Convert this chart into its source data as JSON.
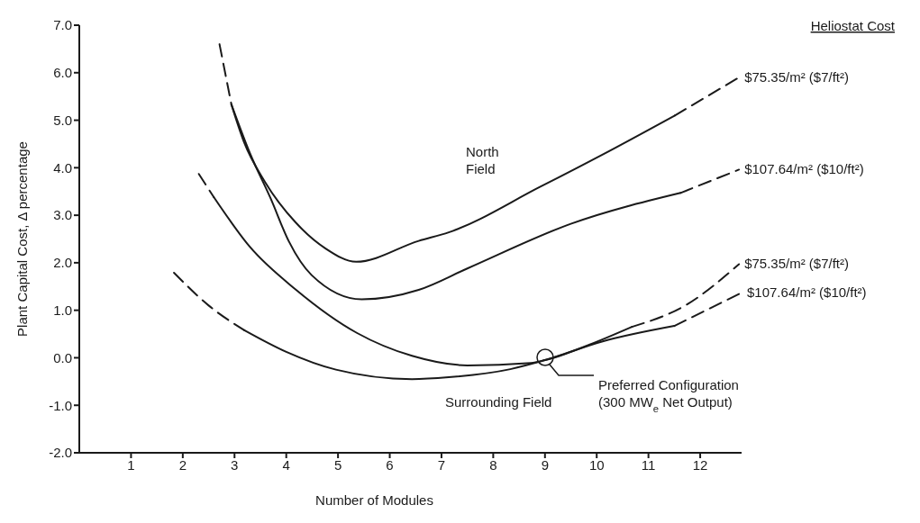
{
  "chart_data": {
    "type": "line",
    "xlabel": "Number of Modules",
    "ylabel": "Plant Capital Cost, Δ percentage",
    "legend_title": "Heliostat Cost",
    "xlim": [
      0,
      12.8
    ],
    "xticks": [
      1,
      2,
      3,
      4,
      5,
      6,
      7,
      8,
      9,
      10,
      11,
      12
    ],
    "ylim": [
      -2,
      7
    ],
    "yticks": [
      {
        "value": -2,
        "label": "-2.0"
      },
      {
        "value": -1,
        "label": "-1.0"
      },
      {
        "value": 0,
        "label": "0.0"
      },
      {
        "value": 1,
        "label": "1.0"
      },
      {
        "value": 2,
        "label": "2.0"
      },
      {
        "value": 3,
        "label": "3.0"
      },
      {
        "value": 4,
        "label": "4.0"
      },
      {
        "value": 5,
        "label": "5.0"
      },
      {
        "value": 6,
        "label": "6.0"
      },
      {
        "value": 7,
        "label": "7.0"
      }
    ],
    "grid": false,
    "legend": false,
    "marker": "none",
    "line_style": "solid",
    "series": [
      {
        "color": "#1a1a1a",
        "line_style": "dashed",
        "x": [
          2.71,
          2.94
        ],
        "values": [
          6.6,
          5.33
        ]
      },
      {
        "color": "#1a1a1a",
        "x": [
          2.94,
          3.18,
          3.59,
          4.18,
          4.76,
          5.35,
          6.56,
          7.14,
          8.91,
          10.1,
          11.51
        ],
        "values": [
          5.33,
          4.55,
          3.7,
          2.85,
          2.3,
          2.02,
          2.46,
          2.64,
          3.6,
          4.27,
          5.1
        ]
      },
      {
        "name": "$75.35/m² ($7/ft²)",
        "color": "#1a1a1a",
        "line_style": "dashed",
        "x": [
          11.51,
          12.75
        ],
        "values": [
          5.1,
          5.9
        ]
      },
      {
        "color": "#1a1a1a",
        "x": [
          2.94,
          3.3,
          3.7,
          4.05,
          4.49,
          5.46,
          6.56,
          7.5,
          9.5,
          11.62
        ],
        "values": [
          5.33,
          4.3,
          3.35,
          2.45,
          1.74,
          1.23,
          1.43,
          1.88,
          2.82,
          3.47
        ]
      },
      {
        "name": "$107.64/m² ($10/ft²)",
        "color": "#1a1a1a",
        "line_style": "dashed",
        "x": [
          11.62,
          12.75
        ],
        "values": [
          3.47,
          3.96
        ]
      },
      {
        "color": "#1a1a1a",
        "line_style": "dashed",
        "x": [
          2.31,
          2.6
        ],
        "values": [
          3.87,
          3.38
        ]
      },
      {
        "color": "#1a1a1a",
        "x": [
          2.6,
          3.3,
          4.19,
          5.37,
          6.43,
          7.5,
          8.73,
          9.0,
          9.8,
          10.68
        ],
        "values": [
          3.38,
          2.33,
          1.43,
          0.52,
          0.04,
          -0.16,
          -0.11,
          -0.05,
          0.25,
          0.65
        ]
      },
      {
        "name": "$75.35/m² ($7/ft²)",
        "color": "#1a1a1a",
        "line_style": "dashed",
        "x": [
          10.68,
          11.74,
          12.75
        ],
        "values": [
          0.65,
          1.12,
          1.97
        ]
      },
      {
        "color": "#1a1a1a",
        "line_style": "dashed",
        "x": [
          1.83,
          2.5,
          3.19
        ],
        "values": [
          1.79,
          1.1,
          0.58
        ]
      },
      {
        "color": "#1a1a1a",
        "x": [
          3.19,
          3.99,
          4.96,
          6.43,
          7.14,
          8.33,
          9.0,
          10.1,
          11.5
        ],
        "values": [
          0.58,
          0.13,
          -0.25,
          -0.45,
          -0.41,
          -0.24,
          -0.05,
          0.34,
          0.67
        ]
      },
      {
        "name": "$107.64/m² ($10/ft²)",
        "color": "#1a1a1a",
        "line_style": "dashed",
        "x": [
          11.5,
          12.8
        ],
        "values": [
          0.67,
          1.37
        ]
      }
    ],
    "annotations": [
      "North\nField",
      "Surrounding Field",
      "Preferred Configuration\n(300 MW$_{e}$ Net Output)"
    ]
  }
}
